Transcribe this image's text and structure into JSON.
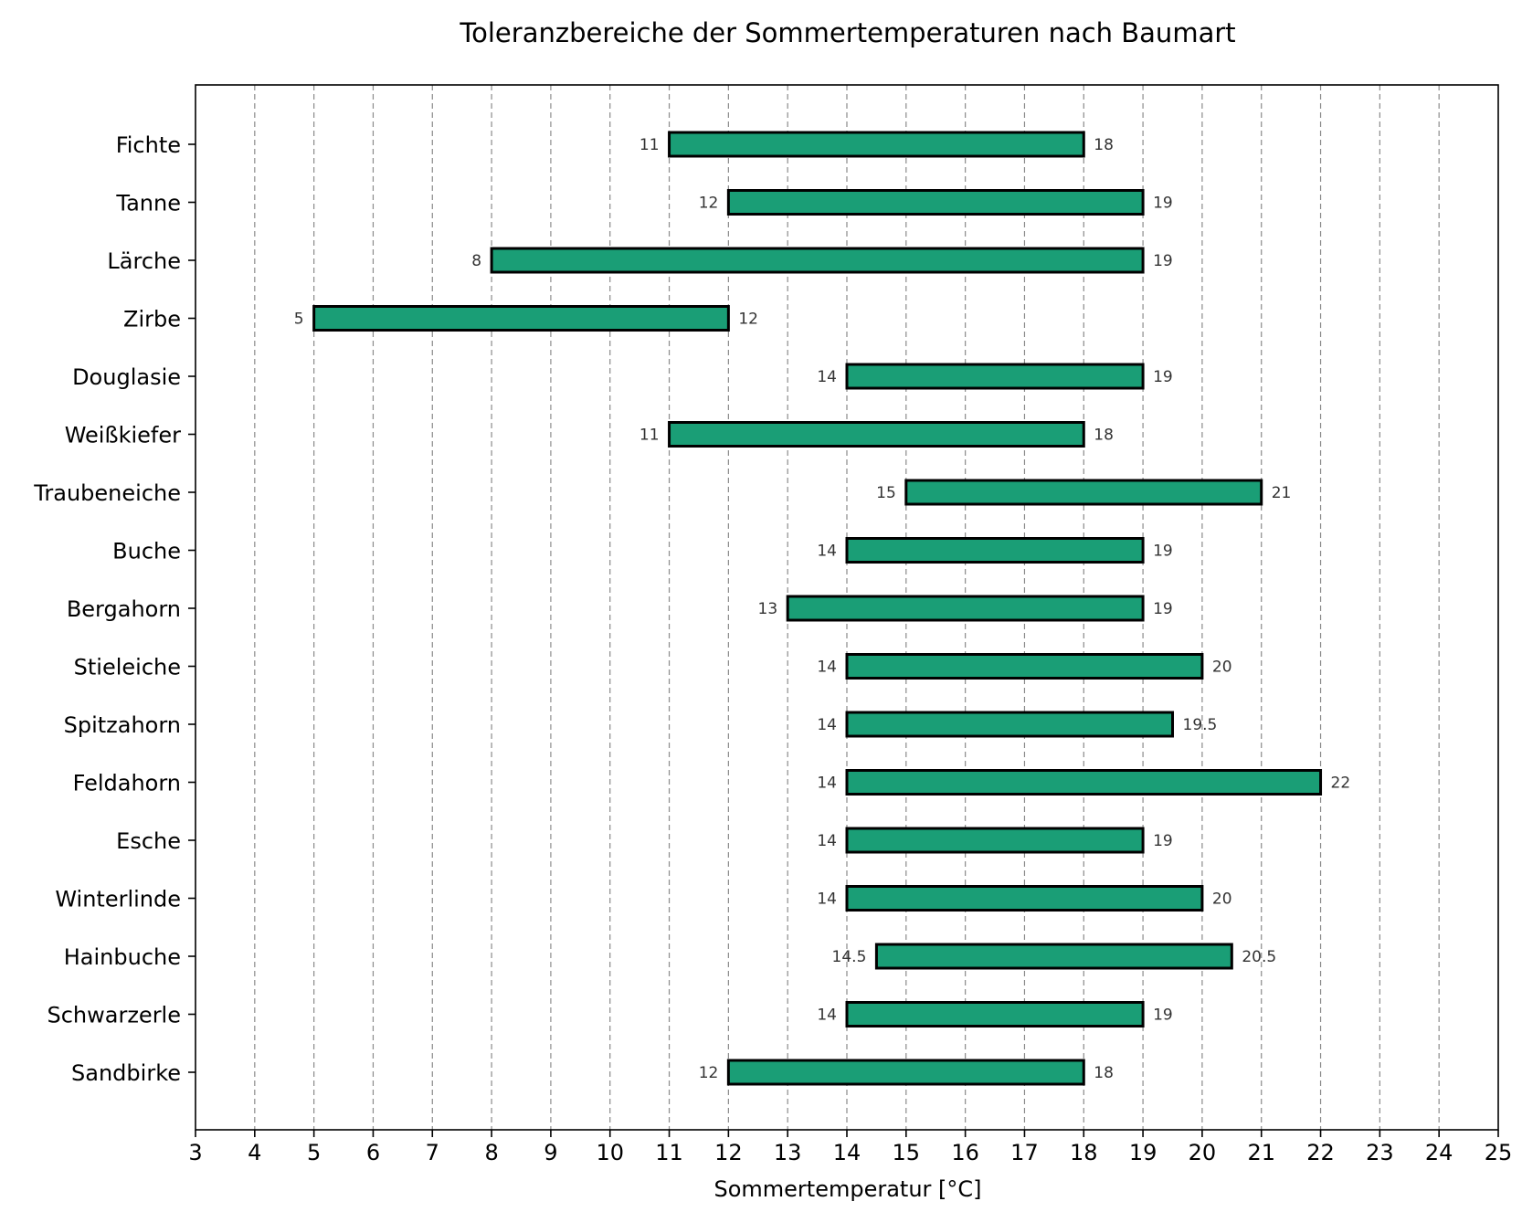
{
  "chart_data": {
    "type": "bar",
    "orientation": "horizontal-range",
    "title": "Toleranzbereiche der Sommertemperaturen nach Baumart",
    "xlabel": "Sommertemperatur [°C]",
    "ylabel": "",
    "xlim": [
      3,
      25
    ],
    "xticks": [
      "3",
      "4",
      "5",
      "6",
      "7",
      "8",
      "9",
      "10",
      "11",
      "12",
      "13",
      "14",
      "15",
      "16",
      "17",
      "18",
      "19",
      "20",
      "21",
      "22",
      "23",
      "24",
      "25"
    ],
    "grid": "vertical dashed",
    "bar_color": "#1a9e76",
    "categories": [
      "Fichte",
      "Tanne",
      "Lärche",
      "Zirbe",
      "Douglasie",
      "Weißkiefer",
      "Traubeneiche",
      "Buche",
      "Bergahorn",
      "Stieleiche",
      "Spitzahorn",
      "Feldahorn",
      "Esche",
      "Winterlinde",
      "Hainbuche",
      "Schwarzerle",
      "Sandbirke"
    ],
    "ranges": [
      {
        "min": 11,
        "max": 18,
        "min_label": "11",
        "max_label": "18"
      },
      {
        "min": 12,
        "max": 19,
        "min_label": "12",
        "max_label": "19"
      },
      {
        "min": 8,
        "max": 19,
        "min_label": "8",
        "max_label": "19"
      },
      {
        "min": 5,
        "max": 12,
        "min_label": "5",
        "max_label": "12"
      },
      {
        "min": 14,
        "max": 19,
        "min_label": "14",
        "max_label": "19"
      },
      {
        "min": 11,
        "max": 18,
        "min_label": "11",
        "max_label": "18"
      },
      {
        "min": 15,
        "max": 21,
        "min_label": "15",
        "max_label": "21"
      },
      {
        "min": 14,
        "max": 19,
        "min_label": "14",
        "max_label": "19"
      },
      {
        "min": 13,
        "max": 19,
        "min_label": "13",
        "max_label": "19"
      },
      {
        "min": 14,
        "max": 20,
        "min_label": "14",
        "max_label": "20"
      },
      {
        "min": 14,
        "max": 19.5,
        "min_label": "14",
        "max_label": "19.5"
      },
      {
        "min": 14,
        "max": 22,
        "min_label": "14",
        "max_label": "22"
      },
      {
        "min": 14,
        "max": 19,
        "min_label": "14",
        "max_label": "19"
      },
      {
        "min": 14,
        "max": 20,
        "min_label": "14",
        "max_label": "20"
      },
      {
        "min": 14.5,
        "max": 20.5,
        "min_label": "14.5",
        "max_label": "20.5"
      },
      {
        "min": 14,
        "max": 19,
        "min_label": "14",
        "max_label": "19"
      },
      {
        "min": 12,
        "max": 18,
        "min_label": "12",
        "max_label": "18"
      }
    ]
  }
}
